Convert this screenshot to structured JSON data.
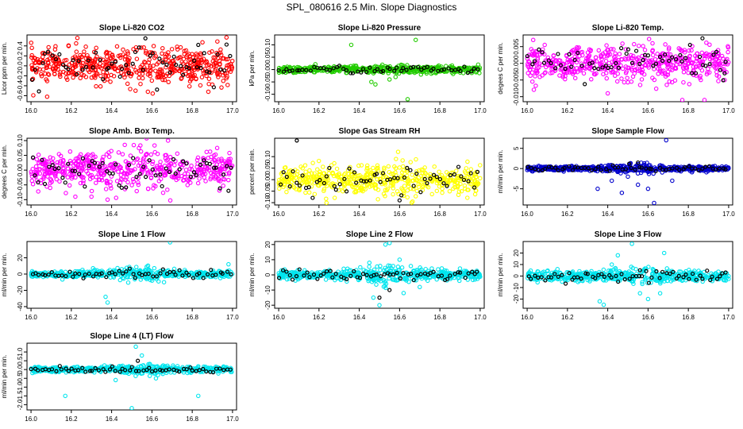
{
  "title": "SPL_080616  2.5 Min. Slope Diagnostics",
  "colors": {
    "ink": "#000000",
    "red": "#ff0000",
    "green": "#22cc00",
    "magenta": "#ff00ff",
    "yellow": "#ffff00",
    "blue": "#0000cc",
    "cyan": "#00e5ee"
  },
  "chart_data": [
    {
      "type": "scatter",
      "title": "Slope Li-820 CO2",
      "ylabel": "Licor ppm per min.",
      "xlim": [
        15.98,
        17.02
      ],
      "ylim": [
        -0.72,
        0.62
      ],
      "xticks": [
        16.0,
        16.2,
        16.4,
        16.6,
        16.8,
        17.0
      ],
      "xtick_labels": [
        "16.0",
        "16.2",
        "16.4",
        "16.6",
        "16.8",
        "17.0"
      ],
      "yticks": [
        -0.6,
        -0.4,
        -0.2,
        0.0,
        0.2,
        0.4
      ],
      "ytick_labels": [
        "-0.6",
        "-0.4",
        "-0.2",
        "0.0",
        "0.2",
        "0.4"
      ],
      "color": "#ff0000",
      "spread": 0.2,
      "outliers": [
        [
          16.08,
          -0.62
        ],
        [
          16.23,
          0.56
        ],
        [
          16.58,
          -0.52
        ],
        [
          16.88,
          -0.52
        ],
        [
          16.97,
          0.57
        ]
      ],
      "black_outliers": [
        [
          16.83,
          0.42
        ]
      ]
    },
    {
      "type": "scatter",
      "title": "Slope Li-820 Pressure",
      "ylabel": "kPa per min.",
      "xlim": [
        15.98,
        17.02
      ],
      "ylim": [
        -0.13,
        0.14
      ],
      "xticks": [
        16.0,
        16.2,
        16.4,
        16.6,
        16.8,
        17.0
      ],
      "xtick_labels": [
        "16.0",
        "16.2",
        "16.4",
        "16.6",
        "16.8",
        "17.0"
      ],
      "yticks": [
        -0.1,
        -0.05,
        0.0,
        0.05,
        0.1
      ],
      "ytick_labels": [
        "-0.10",
        "-0.05",
        "0.00",
        "0.05",
        "0.10"
      ],
      "color": "#22cc00",
      "spread": 0.008,
      "outliers": [
        [
          16.36,
          0.1
        ],
        [
          16.46,
          -0.05
        ],
        [
          16.48,
          -0.06
        ],
        [
          16.55,
          -0.04
        ],
        [
          16.58,
          -0.03
        ],
        [
          16.64,
          -0.12
        ],
        [
          16.68,
          0.12
        ],
        [
          16.99,
          0.02
        ]
      ],
      "black_outliers": []
    },
    {
      "type": "scatter",
      "title": "Slope Li-820 Temp.",
      "ylabel": "degees C per min.",
      "xlim": [
        15.98,
        17.02
      ],
      "ylim": [
        -0.0115,
        0.0085
      ],
      "xticks": [
        16.0,
        16.2,
        16.4,
        16.6,
        16.8,
        17.0
      ],
      "xtick_labels": [
        "16.0",
        "16.2",
        "16.4",
        "16.6",
        "16.8",
        "17.0"
      ],
      "yticks": [
        -0.01,
        -0.005,
        0.0,
        0.005
      ],
      "ytick_labels": [
        "-0.010",
        "-0.005",
        "0.000",
        "0.005"
      ],
      "color": "#ff00ff",
      "spread": 0.0028,
      "outliers": [
        [
          16.03,
          0.007
        ],
        [
          16.4,
          -0.009
        ],
        [
          16.77,
          -0.011
        ],
        [
          16.88,
          -0.011
        ],
        [
          16.98,
          -0.005
        ]
      ],
      "black_outliers": [
        [
          16.87,
          0.0075
        ],
        [
          16.98,
          -0.003
        ]
      ]
    },
    {
      "type": "scatter",
      "title": "Slope Amb. Box Temp.",
      "ylabel": "degrees C per min.",
      "xlim": [
        15.98,
        17.02
      ],
      "ylim": [
        -0.118,
        0.108
      ],
      "xticks": [
        16.0,
        16.2,
        16.4,
        16.6,
        16.8,
        17.0
      ],
      "xtick_labels": [
        "16.0",
        "16.2",
        "16.4",
        "16.6",
        "16.8",
        "17.0"
      ],
      "yticks": [
        -0.1,
        -0.05,
        0.0,
        0.05,
        0.1
      ],
      "ytick_labels": [
        "-0.10",
        "-0.05",
        "0.00",
        "0.05",
        "0.10"
      ],
      "color": "#ff00ff",
      "spread": 0.035,
      "outliers": [
        [
          16.22,
          -0.09
        ],
        [
          16.38,
          -0.1
        ],
        [
          16.68,
          0.1
        ],
        [
          16.3,
          -0.09
        ]
      ],
      "black_outliers": [
        [
          16.98,
          -0.07
        ]
      ]
    },
    {
      "type": "scatter",
      "title": "Slope Gas Stream RH",
      "ylabel": "percent per min.",
      "xlim": [
        15.98,
        17.02
      ],
      "ylim": [
        -0.11,
        0.18
      ],
      "xticks": [
        16.0,
        16.2,
        16.4,
        16.6,
        16.8,
        17.0
      ],
      "xtick_labels": [
        "16.0",
        "16.2",
        "16.4",
        "16.6",
        "16.8",
        "17.0"
      ],
      "yticks": [
        -0.1,
        -0.05,
        0.0,
        0.05,
        0.1
      ],
      "ytick_labels": [
        "-0.10",
        "-0.05",
        "0.00",
        "0.05",
        "0.10"
      ],
      "color": "#ffff00",
      "spread": 0.035,
      "outliers": [
        [
          16.66,
          -0.1
        ],
        [
          16.62,
          -0.07
        ]
      ],
      "black_outliers": [
        [
          16.09,
          0.17
        ],
        [
          16.6,
          -0.09
        ]
      ]
    },
    {
      "type": "scatter",
      "title": "Slope Sample Flow",
      "ylabel": "ml/min per min.",
      "xlim": [
        15.98,
        17.02
      ],
      "ylim": [
        -9.0,
        7.5
      ],
      "xticks": [
        16.0,
        16.2,
        16.4,
        16.6,
        16.8,
        17.0
      ],
      "xtick_labels": [
        "16.0",
        "16.2",
        "16.4",
        "16.6",
        "16.8",
        "17.0"
      ],
      "yticks": [
        -5,
        0,
        5
      ],
      "ytick_labels": [
        "-5",
        "0",
        "5"
      ],
      "color": "#0000cc",
      "spread": 0.35,
      "outliers": [
        [
          16.35,
          -5
        ],
        [
          16.42,
          -3
        ],
        [
          16.47,
          -6
        ],
        [
          16.5,
          -2
        ],
        [
          16.55,
          -4
        ],
        [
          16.6,
          -5
        ],
        [
          16.63,
          -8.5
        ],
        [
          16.69,
          7
        ],
        [
          16.72,
          -3
        ]
      ],
      "black_outliers": [
        [
          16.55,
          1.5
        ]
      ]
    },
    {
      "type": "scatter",
      "title": "Slope Line 1 Flow",
      "ylabel": "ml/min per min.",
      "xlim": [
        15.98,
        17.02
      ],
      "ylim": [
        -42,
        40
      ],
      "xticks": [
        16.0,
        16.2,
        16.4,
        16.6,
        16.8,
        17.0
      ],
      "xtick_labels": [
        "16.0",
        "16.2",
        "16.4",
        "16.6",
        "16.8",
        "17.0"
      ],
      "yticks": [
        -40,
        -20,
        0,
        20
      ],
      "ytick_labels": [
        "-40",
        "-20",
        "0",
        "20"
      ],
      "color": "#00e5ee",
      "spread": 2.5,
      "outliers": [
        [
          16.37,
          -28
        ],
        [
          16.38,
          -35
        ],
        [
          16.69,
          39
        ],
        [
          16.58,
          10
        ],
        [
          16.98,
          12
        ],
        [
          16.66,
          -10
        ]
      ],
      "black_outliers": []
    },
    {
      "type": "scatter",
      "title": "Slope Line 2 Flow",
      "ylabel": "ml/min per min.",
      "xlim": [
        15.98,
        17.02
      ],
      "ylim": [
        -22,
        22
      ],
      "xticks": [
        16.0,
        16.2,
        16.4,
        16.6,
        16.8,
        17.0
      ],
      "xtick_labels": [
        "16.0",
        "16.2",
        "16.4",
        "16.6",
        "16.8",
        "17.0"
      ],
      "yticks": [
        -20,
        -10,
        0,
        10,
        20
      ],
      "ytick_labels": [
        "-20",
        "-10",
        "0",
        "10",
        "20"
      ],
      "color": "#00e5ee",
      "spread": 1.8,
      "outliers": [
        [
          16.53,
          20
        ],
        [
          16.55,
          21
        ],
        [
          16.6,
          10
        ],
        [
          16.47,
          -15
        ],
        [
          16.5,
          -20
        ],
        [
          16.62,
          -12
        ],
        [
          16.7,
          -8
        ],
        [
          16.45,
          8
        ]
      ],
      "black_outliers": [
        [
          16.5,
          -15
        ],
        [
          16.55,
          -10
        ]
      ]
    },
    {
      "type": "scatter",
      "title": "Slope Line 3 Flow",
      "ylabel": "ml/min per min.",
      "xlim": [
        15.98,
        17.02
      ],
      "ylim": [
        -28,
        30
      ],
      "xticks": [
        16.0,
        16.2,
        16.4,
        16.6,
        16.8,
        17.0
      ],
      "xtick_labels": [
        "16.0",
        "16.2",
        "16.4",
        "16.6",
        "16.8",
        "17.0"
      ],
      "yticks": [
        -20,
        -10,
        0,
        10,
        20
      ],
      "ytick_labels": [
        "-20",
        "-10",
        "0",
        "10",
        "20"
      ],
      "color": "#00e5ee",
      "spread": 2.5,
      "outliers": [
        [
          16.36,
          -22
        ],
        [
          16.38,
          -25
        ],
        [
          16.45,
          18
        ],
        [
          16.52,
          28
        ],
        [
          16.56,
          -15
        ],
        [
          16.6,
          -20
        ],
        [
          16.66,
          -15
        ],
        [
          16.68,
          20
        ],
        [
          16.42,
          10
        ]
      ],
      "black_outliers": [
        [
          16.56,
          5
        ]
      ]
    },
    {
      "type": "scatter",
      "title": "Slope Line 4 (LT) Flow",
      "ylabel": "ml/min per min.",
      "xlim": [
        15.98,
        17.02
      ],
      "ylim": [
        -2.3,
        1.5
      ],
      "xticks": [
        16.0,
        16.2,
        16.4,
        16.6,
        16.8,
        17.0
      ],
      "xtick_labels": [
        "16.0",
        "16.2",
        "16.4",
        "16.6",
        "16.8",
        "17.0"
      ],
      "yticks": [
        -2.0,
        -1.5,
        -1.0,
        -0.5,
        0.0,
        0.5,
        1.0
      ],
      "ytick_labels": [
        "-2.0",
        "-1.5",
        "-1.0",
        "-0.5",
        "0.0",
        "0.5",
        "1.0"
      ],
      "color": "#00e5ee",
      "spread": 0.09,
      "outliers": [
        [
          16.17,
          -1.5
        ],
        [
          16.52,
          1.3
        ],
        [
          16.5,
          -2.2
        ],
        [
          16.83,
          -1.5
        ],
        [
          16.55,
          0.8
        ],
        [
          16.42,
          -0.6
        ],
        [
          16.62,
          -0.5
        ]
      ],
      "black_outliers": [
        [
          16.53,
          0.5
        ]
      ]
    }
  ]
}
